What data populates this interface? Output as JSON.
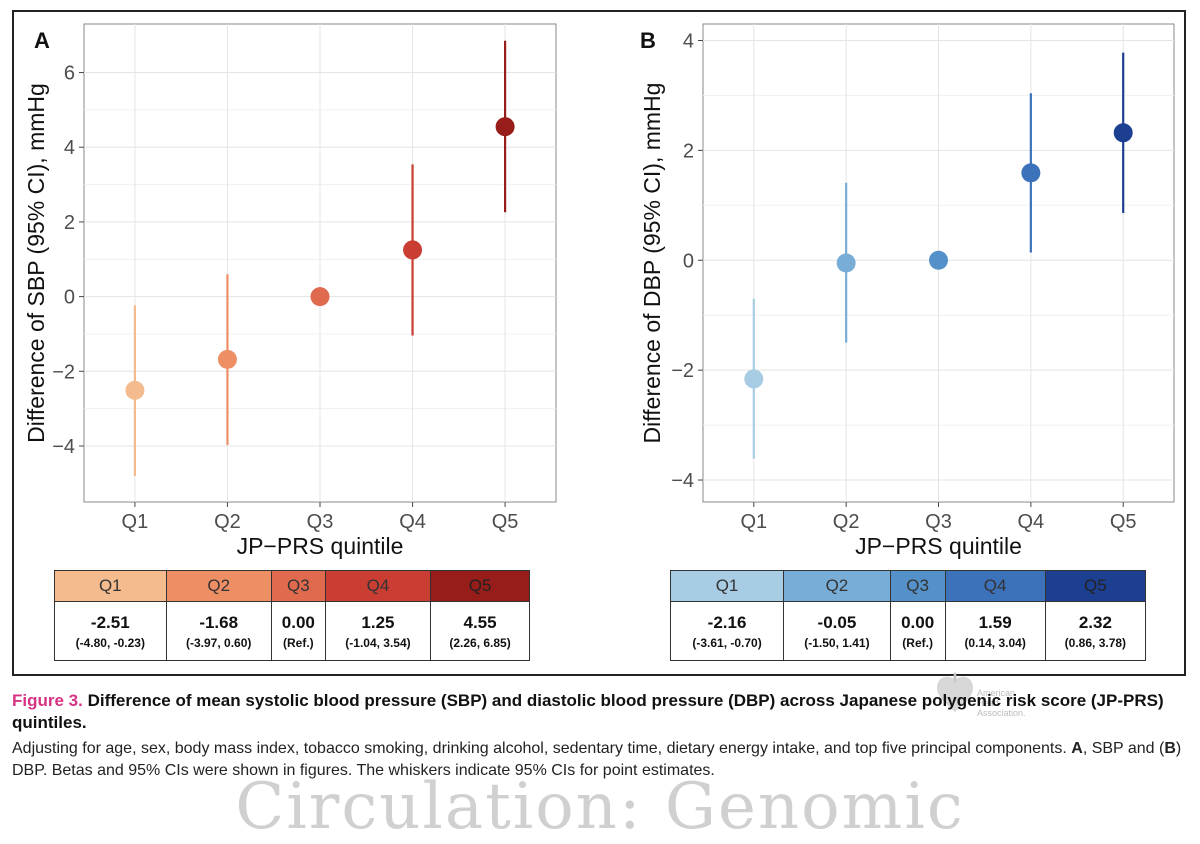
{
  "chart_data": [
    {
      "type": "scatter",
      "panel_label": "A",
      "xlabel": "JP−PRS quintile",
      "ylabel": "Difference of SBP (95% CI), mmHg",
      "categories": [
        "Q1",
        "Q2",
        "Q3",
        "Q4",
        "Q5"
      ],
      "values": [
        -2.51,
        -1.68,
        0.0,
        1.25,
        4.55
      ],
      "ci_low": [
        -4.8,
        -3.97,
        0.0,
        -1.04,
        2.26
      ],
      "ci_high": [
        -0.23,
        0.6,
        0.0,
        3.54,
        6.85
      ],
      "ylim": [
        -5.5,
        7.3
      ],
      "yticks": [
        -4,
        -2,
        0,
        2,
        4,
        6
      ],
      "ytick_labels": [
        "−4",
        "−2",
        "0",
        "2",
        "4",
        "6"
      ],
      "colors": [
        "#f4bb8e",
        "#ee8e65",
        "#e06a4e",
        "#c93d33",
        "#961d19"
      ],
      "grid": true
    },
    {
      "type": "scatter",
      "panel_label": "B",
      "xlabel": "JP−PRS quintile",
      "ylabel": "Difference of DBP (95% CI), mmHg",
      "categories": [
        "Q1",
        "Q2",
        "Q3",
        "Q4",
        "Q5"
      ],
      "values": [
        -2.16,
        -0.05,
        0.0,
        1.59,
        2.32
      ],
      "ci_low": [
        -3.61,
        -1.5,
        0.0,
        0.14,
        0.86
      ],
      "ci_high": [
        -0.7,
        1.41,
        0.0,
        3.04,
        3.78
      ],
      "ylim": [
        -4.4,
        4.3
      ],
      "yticks": [
        -4,
        -2,
        0,
        2,
        4
      ],
      "ytick_labels": [
        "−4",
        "−2",
        "0",
        "2",
        "4"
      ],
      "colors": [
        "#a8cce3",
        "#78add7",
        "#5391c8",
        "#3c72ba",
        "#1d3f91"
      ],
      "grid": true
    }
  ],
  "tables": {
    "a": {
      "headers": [
        "Q1",
        "Q2",
        "Q3",
        "Q4",
        "Q5"
      ],
      "estimates": [
        "-2.51",
        "-1.68",
        "0.00",
        "1.25",
        "4.55"
      ],
      "cis": [
        "(-4.80, -0.23)",
        "(-3.97, 0.60)",
        "(Ref.)",
        "(-1.04, 3.54)",
        "(2.26, 6.85)"
      ]
    },
    "b": {
      "headers": [
        "Q1",
        "Q2",
        "Q3",
        "Q4",
        "Q5"
      ],
      "estimates": [
        "-2.16",
        "-0.05",
        "0.00",
        "1.59",
        "2.32"
      ],
      "cis": [
        "(-3.61, -0.70)",
        "(-1.50, 1.41)",
        "(Ref.)",
        "(0.14, 3.04)",
        "(0.86, 3.78)"
      ]
    }
  },
  "caption": {
    "figure_label": "Figure 3.",
    "title": "Difference of mean systolic blood pressure (SBP) and diastolic blood pressure (DBP) across Japanese polygenic risk score (JP-PRS) quintiles.",
    "body_part1": "Adjusting for age, sex, body mass index, tobacco smoking, drinking alcohol, sedentary time, dietary energy intake, and top five principal components. ",
    "body_a": "A",
    "body_part2": ", SBP and (",
    "body_b": "B",
    "body_part3": ") DBP. Betas and 95% CIs were shown in figures. The whiskers indicate 95% CIs for point estimates."
  },
  "logo": {
    "line1": "American",
    "line2": "Heart",
    "line3": "Association."
  },
  "watermark": "Circulation: Genomic"
}
